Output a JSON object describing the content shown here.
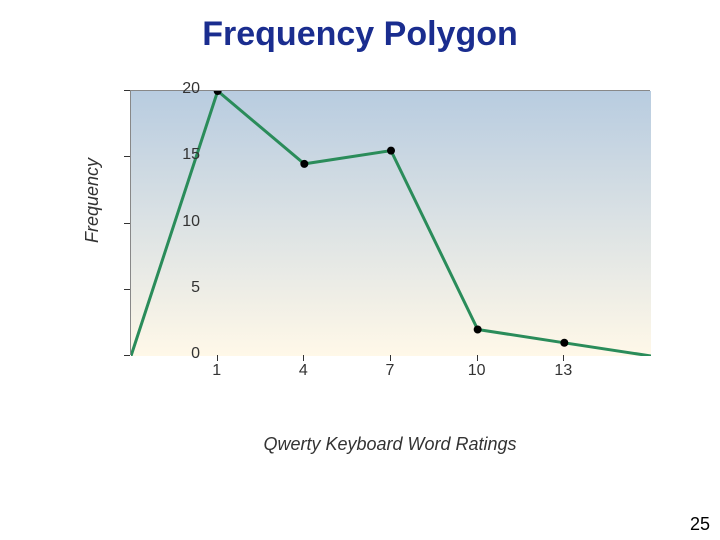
{
  "title": {
    "text": "Frequency Polygon",
    "color": "#1a2d8f",
    "fontsize": 34
  },
  "chart": {
    "type": "line",
    "ylabel": "Frequency",
    "xlabel": "Qwerty Keyboard Word Ratings",
    "label_fontsize": 18,
    "tick_fontsize": 16,
    "ylim": [
      0,
      20
    ],
    "ytick_step": 5,
    "yticks": [
      0,
      5,
      10,
      15,
      20
    ],
    "xticks": [
      1,
      4,
      7,
      10,
      13
    ],
    "xlim": [
      -2,
      16
    ],
    "line_color": "#2a8c5a",
    "line_width": 3,
    "marker_color": "#000000",
    "marker_size": 4,
    "background_gradient_top": "#b8cce0",
    "background_gradient_bottom": "#fff8e8",
    "border_color": "#888888",
    "axis_text_color": "#333333",
    "data": {
      "x": [
        -2,
        1,
        4,
        7,
        10,
        13,
        16
      ],
      "y": [
        0,
        20,
        14.5,
        15.5,
        2,
        1,
        0
      ]
    }
  },
  "page_number": "25"
}
